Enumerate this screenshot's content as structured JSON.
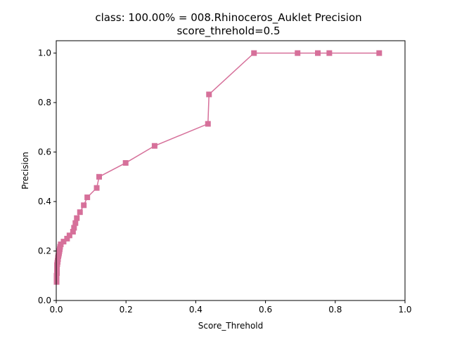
{
  "chart_data": {
    "type": "line",
    "title_line1": "class: 100.00% = 008.Rhinoceros_Auklet Precision",
    "title_line2": "score_threhold=0.5",
    "xlabel": "Score_Threhold",
    "ylabel": "Precision",
    "xlim": [
      0,
      1.0
    ],
    "ylim": [
      0,
      1.05
    ],
    "xticks": [
      "0.0",
      "0.2",
      "0.4",
      "0.6",
      "0.8",
      "1.0"
    ],
    "yticks": [
      "0.0",
      "0.2",
      "0.4",
      "0.6",
      "0.8",
      "1.0"
    ],
    "grid": false,
    "color": "#d6709a",
    "marker": "square",
    "x": [
      0.926,
      0.783,
      0.75,
      0.692,
      0.567,
      0.438,
      0.435,
      0.282,
      0.199,
      0.123,
      0.116,
      0.089,
      0.079,
      0.068,
      0.059,
      0.055,
      0.051,
      0.048,
      0.038,
      0.031,
      0.021,
      0.013,
      0.011,
      0.01,
      0.009,
      0.008,
      0.007,
      0.006,
      0.005,
      0.005,
      0.004,
      0.004,
      0.003,
      0.003,
      0.002,
      0.002,
      0.002,
      0.001,
      0.001,
      0.001
    ],
    "y": [
      1.0,
      1.0,
      1.0,
      1.0,
      1.0,
      0.833,
      0.714,
      0.625,
      0.556,
      0.5,
      0.455,
      0.417,
      0.385,
      0.357,
      0.333,
      0.313,
      0.294,
      0.278,
      0.263,
      0.25,
      0.238,
      0.227,
      0.217,
      0.208,
      0.2,
      0.192,
      0.185,
      0.179,
      0.172,
      0.167,
      0.161,
      0.156,
      0.152,
      0.147,
      0.143,
      0.125,
      0.111,
      0.1,
      0.087,
      0.075
    ]
  }
}
